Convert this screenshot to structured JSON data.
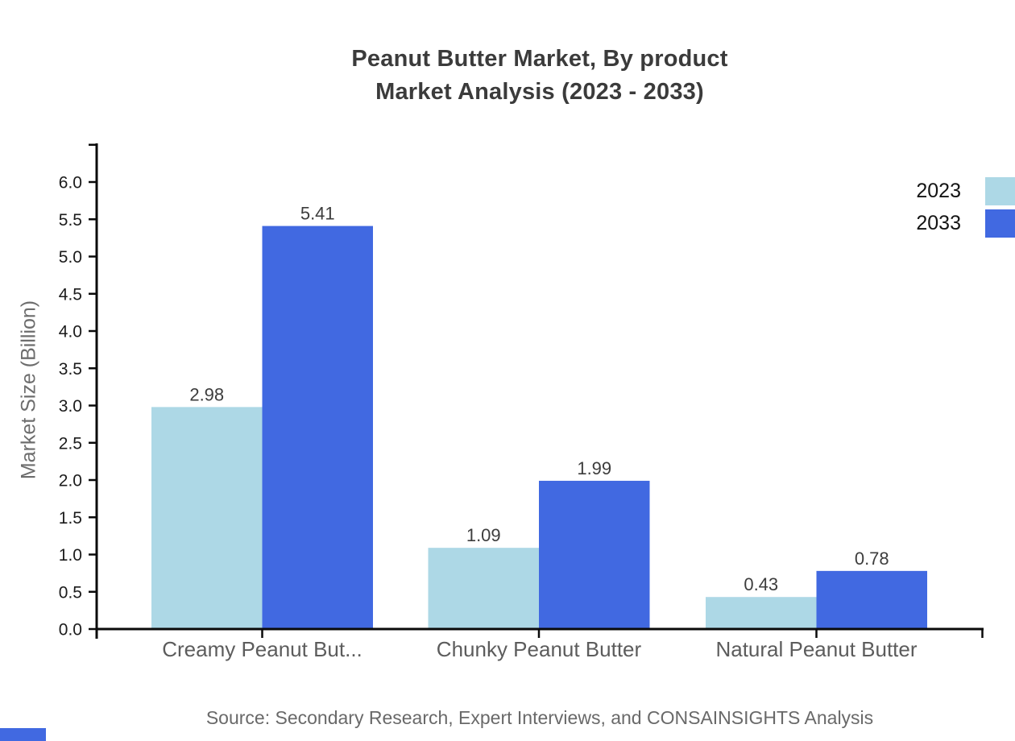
{
  "title": {
    "line1": "Peanut Butter Market, By product",
    "line2": "Market Analysis (2023 - 2033)"
  },
  "legend": {
    "position": "top-right",
    "items": [
      {
        "label": "2023",
        "swatch_color": "#add8e6"
      },
      {
        "label": "2033",
        "swatch_color": "#4169e1"
      }
    ]
  },
  "source": "Source: Secondary Research, Expert Interviews, and CONSAINSIGHTS Analysis",
  "decorations": {
    "bottom_left_mark_color": "#4169e1"
  },
  "chart_data": {
    "type": "bar",
    "title": "Peanut Butter Market, By product Market Analysis (2023 - 2033)",
    "categories": [
      "Creamy Peanut But...",
      "Chunky Peanut Butter",
      "Natural Peanut Butter"
    ],
    "series": [
      {
        "name": "2023",
        "color": "#add8e6",
        "values": [
          2.98,
          1.09,
          0.43
        ],
        "labels": [
          "2.98",
          "1.09",
          "0.43"
        ]
      },
      {
        "name": "2033",
        "color": "#4169e1",
        "values": [
          5.41,
          1.99,
          0.78
        ],
        "labels": [
          "5.41",
          "1.99",
          "0.78"
        ]
      }
    ],
    "xlabel": "",
    "ylabel": "Market Size (Billion)",
    "ylim": [
      0,
      6.5
    ],
    "ytick_labels": [
      "0.0",
      "0.5",
      "1.0",
      "1.5",
      "2.0",
      "2.5",
      "3.0",
      "3.5",
      "4.0",
      "4.5",
      "5.0",
      "5.5",
      "6.0"
    ],
    "grid": false,
    "legend_position": "top-right",
    "axis_color": "#0a0a0a",
    "value_label_color": "#3d3d3d",
    "tick_label_color": "#1b1b1b",
    "category_label_color": "#5c5c5c"
  }
}
